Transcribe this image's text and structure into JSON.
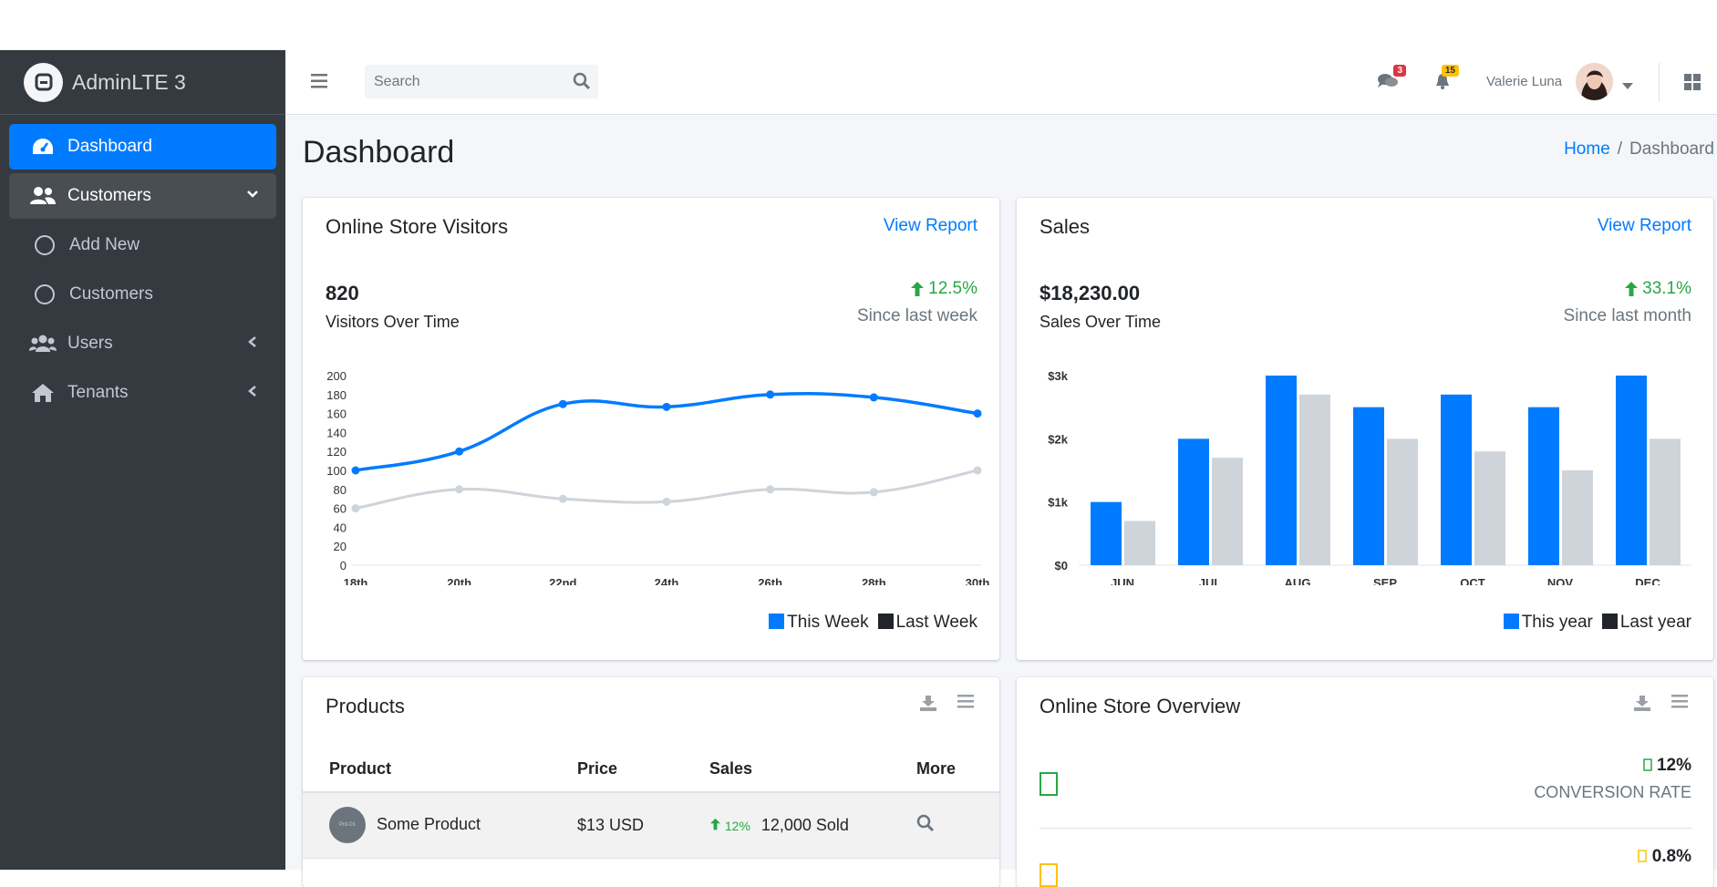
{
  "brand": {
    "name": "AdminLTE 3"
  },
  "sidebar": {
    "items": [
      {
        "label": "Dashboard"
      },
      {
        "label": "Customers"
      },
      {
        "label": "Add New"
      },
      {
        "label": "Customers"
      },
      {
        "label": "Users"
      },
      {
        "label": "Tenants"
      }
    ]
  },
  "topbar": {
    "search_placeholder": "Search",
    "messages_count": "3",
    "notifications_count": "15",
    "user_name": "Valerie Luna"
  },
  "page": {
    "title": "Dashboard",
    "breadcrumb_home": "Home",
    "breadcrumb_current": "Dashboard"
  },
  "visitors": {
    "title": "Online Store Visitors",
    "link": "View Report",
    "value": "820",
    "label": "Visitors Over Time",
    "change": "12.5%",
    "since": "Since last week",
    "legend": [
      "This Week",
      "Last Week"
    ]
  },
  "sales": {
    "title": "Sales",
    "link": "View Report",
    "value": "$18,230.00",
    "label": "Sales Over Time",
    "change": "33.1%",
    "since": "Since last month",
    "legend": [
      "This year",
      "Last year"
    ]
  },
  "products": {
    "title": "Products",
    "headers": [
      "Product",
      "Price",
      "Sales",
      "More"
    ],
    "rows": [
      {
        "name": "Some Product",
        "price": "$13 USD",
        "change": "12%",
        "sold": "12,000 Sold",
        "img_text": "Prd-01"
      }
    ]
  },
  "overview": {
    "title": "Online Store Overview",
    "rows": [
      {
        "pct": "12%",
        "label": "CONVERSION RATE"
      },
      {
        "pct": "0.8%",
        "label": ""
      }
    ]
  },
  "colors": {
    "primary": "#007bff",
    "grey": "#ced4da",
    "dark": "#343a40",
    "success": "#28a745"
  },
  "chart_data": [
    {
      "type": "line",
      "categories": [
        "18th",
        "20th",
        "22nd",
        "24th",
        "26th",
        "28th",
        "30th"
      ],
      "series": [
        {
          "name": "This Week",
          "values": [
            100,
            120,
            170,
            167,
            180,
            177,
            160
          ]
        },
        {
          "name": "Last Week",
          "values": [
            60,
            80,
            70,
            67,
            80,
            77,
            100
          ]
        }
      ],
      "yticks": [
        "0",
        "20",
        "40",
        "60",
        "80",
        "100",
        "120",
        "140",
        "160",
        "180",
        "200"
      ],
      "ylim": [
        0,
        200
      ],
      "legend": "bottom-right"
    },
    {
      "type": "bar",
      "categories": [
        "JUN",
        "JUL",
        "AUG",
        "SEP",
        "OCT",
        "NOV",
        "DEC"
      ],
      "series": [
        {
          "name": "This year",
          "values": [
            1000,
            2000,
            3000,
            2500,
            2700,
            2500,
            3000
          ]
        },
        {
          "name": "Last year",
          "values": [
            700,
            1700,
            2700,
            2000,
            1800,
            1500,
            2000
          ]
        }
      ],
      "yticks": [
        "$0",
        "$1k",
        "$2k",
        "$3k"
      ],
      "ylim": [
        0,
        3000
      ],
      "legend": "bottom-right"
    }
  ]
}
